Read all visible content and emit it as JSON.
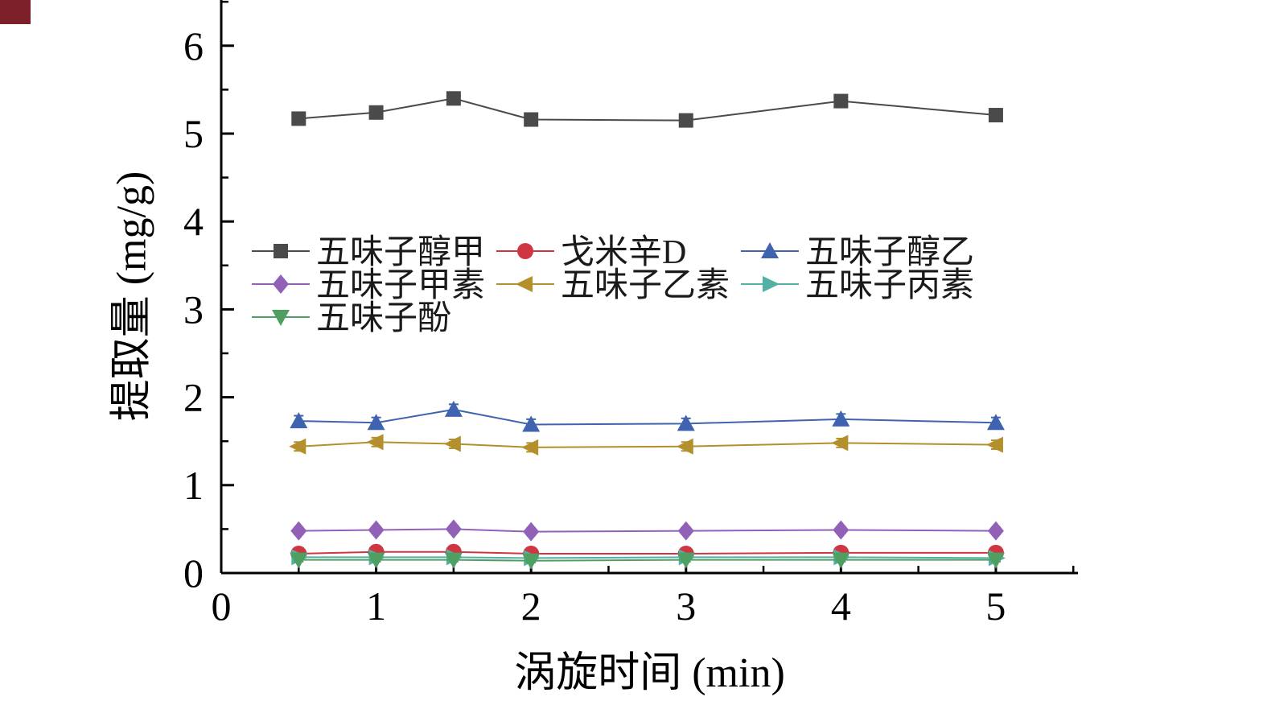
{
  "page": {
    "background": "#ffffff",
    "artifact_color": "#7c1f28"
  },
  "chart_data": {
    "type": "line",
    "title": "",
    "xlabel": "涡旋时间 (min)",
    "ylabel": "提取量 (mg/g)",
    "x": [
      0.5,
      1,
      1.5,
      2,
      3,
      4,
      5
    ],
    "xlim": [
      0,
      5.53
    ],
    "ylim": [
      0,
      6.52
    ],
    "x_ticks": [
      0,
      1,
      2,
      3,
      4,
      5
    ],
    "y_ticks": [
      0,
      1,
      2,
      3,
      4,
      5,
      6
    ],
    "grid": false,
    "axis_color": "#000000",
    "series": [
      {
        "name": "五味子醇甲",
        "marker": "square",
        "color": "#4a4a4a",
        "values": [
          5.17,
          5.24,
          5.4,
          5.16,
          5.15,
          5.37,
          5.21
        ],
        "err": 0.05
      },
      {
        "name": "戈米辛D",
        "marker": "circle",
        "color": "#cf3642",
        "values": [
          0.22,
          0.24,
          0.24,
          0.22,
          0.22,
          0.23,
          0.23
        ],
        "err": 0.02
      },
      {
        "name": "五味子醇乙",
        "marker": "triangle-up",
        "color": "#3f63ae",
        "values": [
          1.73,
          1.71,
          1.86,
          1.69,
          1.7,
          1.75,
          1.71
        ],
        "err": 0.06
      },
      {
        "name": "五味子甲素",
        "marker": "diamond",
        "color": "#9161b8",
        "values": [
          0.48,
          0.49,
          0.5,
          0.47,
          0.48,
          0.49,
          0.48
        ],
        "err": 0.04
      },
      {
        "name": "五味子乙素",
        "marker": "triangle-left",
        "color": "#b3902c",
        "values": [
          1.44,
          1.49,
          1.47,
          1.43,
          1.44,
          1.48,
          1.46
        ],
        "err": 0.05
      },
      {
        "name": "五味子丙素",
        "marker": "triangle-right",
        "color": "#52b0a4",
        "values": [
          0.18,
          0.18,
          0.18,
          0.17,
          0.18,
          0.18,
          0.17
        ],
        "err": 0.02
      },
      {
        "name": "五味子酚",
        "marker": "triangle-down",
        "color": "#4f9f63",
        "values": [
          0.15,
          0.15,
          0.15,
          0.14,
          0.15,
          0.15,
          0.15
        ],
        "err": 0.02
      }
    ],
    "legend": {
      "position": "inside-left-middle",
      "rows": [
        [
          "五味子醇甲",
          "戈米辛D",
          "五味子醇乙"
        ],
        [
          "五味子甲素",
          "五味子乙素",
          "五味子丙素"
        ],
        [
          "五味子酚"
        ]
      ]
    }
  }
}
